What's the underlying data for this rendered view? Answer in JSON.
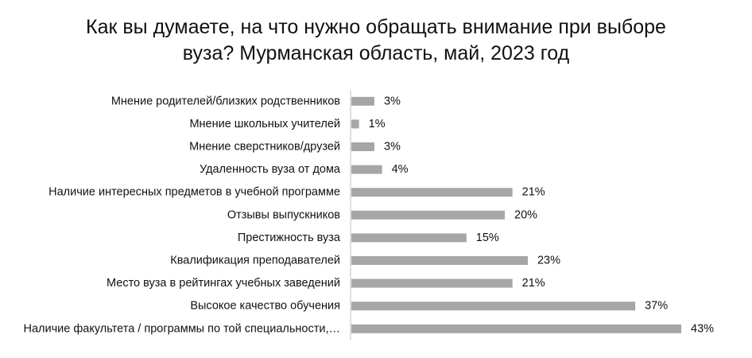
{
  "chart_data": {
    "type": "bar",
    "orientation": "horizontal",
    "title_lines": [
      "Как вы думаете, на что нужно обращать внимание при выборе",
      "вуза? Мурманская область, май, 2023 год"
    ],
    "categories": [
      "Мнение родителей/близких родственников",
      "Мнение школьных учителей",
      "Мнение сверстников/друзей",
      "Удаленность вуза от дома",
      "Наличие интересных предметов в учебной программе",
      "Отзывы выпускников",
      "Престижность вуза",
      "Квалификация преподавателей",
      "Место вуза в рейтингах учебных заведений",
      "Высокое качество обучения",
      "Наличие факультета / программы по той специальности,…"
    ],
    "values": [
      3,
      1,
      3,
      4,
      21,
      20,
      15,
      23,
      21,
      37,
      43
    ],
    "value_labels": [
      "3%",
      "1%",
      "3%",
      "4%",
      "21%",
      "20%",
      "15%",
      "23%",
      "21%",
      "37%",
      "43%"
    ],
    "unit": "%",
    "xlim": [
      0,
      43
    ],
    "bar_color": "#a6a6a6",
    "axis_color": "#bfbfbf",
    "grid": false,
    "legend": "none"
  }
}
